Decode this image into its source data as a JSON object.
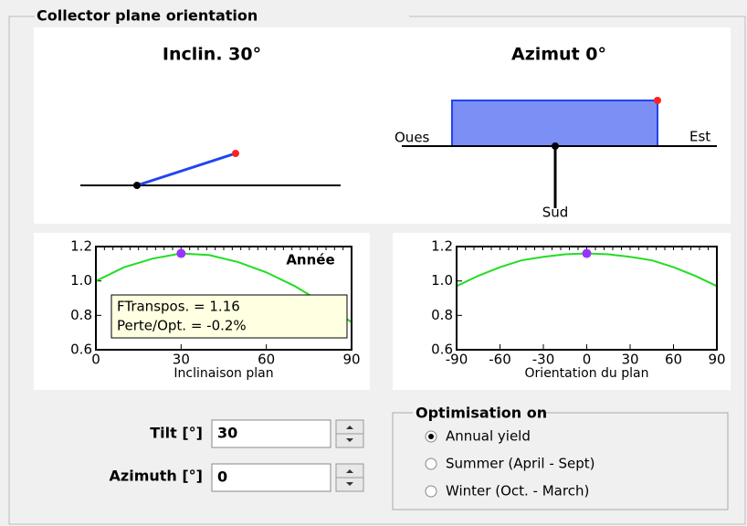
{
  "group_title": "Collector plane orientation",
  "tilt_diagram": {
    "title": "Inclin. 30°"
  },
  "azimuth_diagram": {
    "title": "Azimut 0°",
    "west": "Oues",
    "east": "Est",
    "south": "Sud"
  },
  "plots": [
    {
      "type": "line",
      "xlabel": "Inclinaison plan",
      "annotation": "Année",
      "xlim": [
        0,
        90
      ],
      "ylim": [
        0.6,
        1.2
      ],
      "xticks": [
        0,
        30,
        60,
        90
      ],
      "yticks": [
        0.6,
        0.8,
        {
          "value": 1,
          "label": "1.0"
        },
        1.2
      ],
      "x": [
        0,
        10,
        20,
        30,
        40,
        50,
        60,
        70,
        80,
        90
      ],
      "values": [
        1.0,
        1.08,
        1.13,
        1.16,
        1.15,
        1.11,
        1.05,
        0.97,
        0.87,
        0.76
      ],
      "color": "#22dd22",
      "marker": {
        "x": 30,
        "y": 1.16,
        "color": "#9933ff"
      },
      "tooltip": [
        "FTranspos. = 1.16",
        "Perte/Opt. = -0.2%"
      ]
    },
    {
      "type": "line",
      "xlabel": "Orientation du plan",
      "xlim": [
        -90,
        90
      ],
      "ylim": [
        0.6,
        1.2
      ],
      "xticks": [
        -90,
        -60,
        -30,
        0,
        30,
        60,
        90
      ],
      "yticks": [
        0.6,
        0.8,
        {
          "value": 1,
          "label": "1.0"
        },
        1.2
      ],
      "x": [
        -90,
        -75,
        -60,
        -45,
        -30,
        -15,
        0,
        15,
        30,
        45,
        60,
        75,
        90
      ],
      "values": [
        0.97,
        1.03,
        1.08,
        1.12,
        1.14,
        1.155,
        1.16,
        1.155,
        1.14,
        1.12,
        1.08,
        1.03,
        0.97
      ],
      "color": "#22dd22",
      "marker": {
        "x": 0,
        "y": 1.16,
        "color": "#9933ff"
      }
    }
  ],
  "tilt": {
    "label": "Tilt [°]",
    "value": "30"
  },
  "azimuth": {
    "label": "Azimuth [°]",
    "value": "0"
  },
  "optimisation": {
    "title": "Optimisation on",
    "options": [
      "Annual yield",
      "Summer (April - Sept)",
      "Winter (Oct. - March)"
    ],
    "selected": 0
  }
}
